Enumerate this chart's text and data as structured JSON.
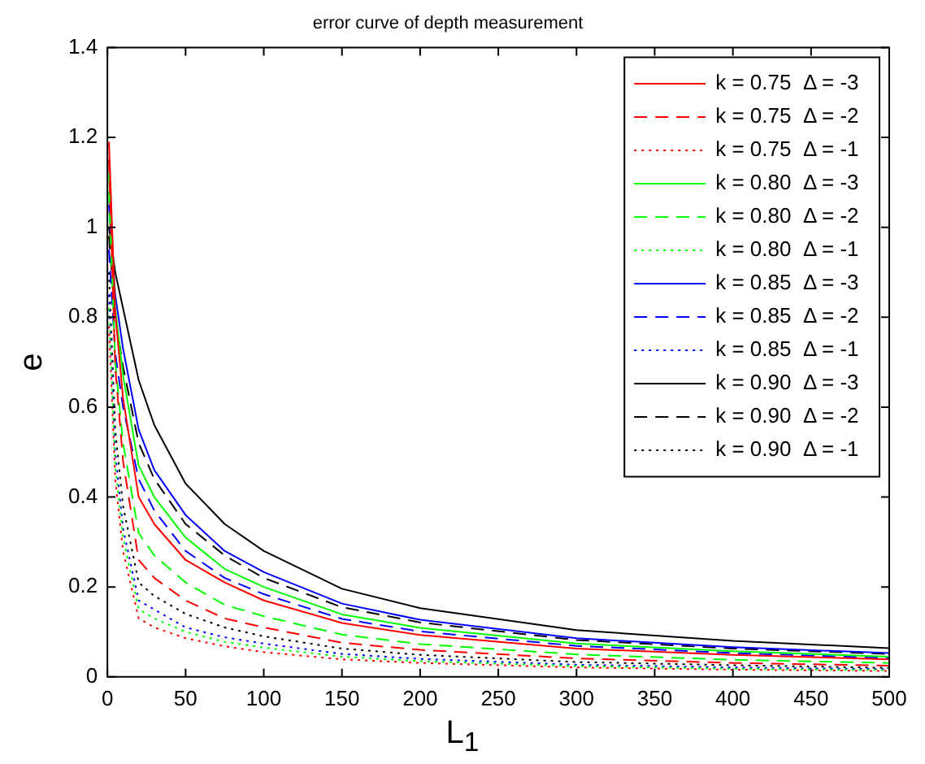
{
  "chart_data": {
    "type": "line",
    "title": "error curve of depth measurement",
    "xlabel": "L$_{1}$",
    "ylabel": "e",
    "x": [
      1,
      5,
      10,
      20,
      30,
      50,
      75,
      100,
      150,
      200,
      300,
      400,
      500
    ],
    "xlim": [
      0,
      500
    ],
    "xticks": [
      0,
      50,
      100,
      150,
      200,
      250,
      300,
      350,
      400,
      450,
      500
    ],
    "ylim": [
      0,
      1.4
    ],
    "yticks": [
      0,
      0.2,
      0.4,
      0.6,
      0.8,
      1,
      1.2,
      1.4
    ],
    "grid": false,
    "legend": "top right",
    "marker": "none",
    "series": [
      {
        "name": "k = 0.75  Δ = -3",
        "color": "#ff0000",
        "line_style": "solid",
        "values": [
          1.19,
          0.81,
          0.62,
          0.4,
          0.34,
          0.26,
          0.21,
          0.17,
          0.12,
          0.093,
          0.063,
          0.049,
          0.039
        ]
      },
      {
        "name": "k = 0.75  Δ = -2",
        "color": "#ff0000",
        "line_style": "dashed",
        "values": [
          1.15,
          0.69,
          0.48,
          0.26,
          0.22,
          0.17,
          0.13,
          0.11,
          0.076,
          0.06,
          0.041,
          0.031,
          0.025
        ]
      },
      {
        "name": "k = 0.75  Δ = -1",
        "color": "#ff0000",
        "line_style": "dotted",
        "values": [
          0.78,
          0.44,
          0.28,
          0.13,
          0.11,
          0.086,
          0.068,
          0.055,
          0.039,
          0.031,
          0.021,
          0.016,
          0.013
        ]
      },
      {
        "name": "k = 0.80  Δ = -3",
        "color": "#00ff00",
        "line_style": "solid",
        "values": [
          1.12,
          0.82,
          0.67,
          0.47,
          0.4,
          0.31,
          0.24,
          0.2,
          0.139,
          0.109,
          0.074,
          0.057,
          0.045
        ]
      },
      {
        "name": "k = 0.80  Δ = -2",
        "color": "#00ff00",
        "line_style": "dashed",
        "values": [
          1.08,
          0.7,
          0.52,
          0.32,
          0.27,
          0.21,
          0.16,
          0.135,
          0.094,
          0.073,
          0.05,
          0.038,
          0.031
        ]
      },
      {
        "name": "k = 0.80  Δ = -1",
        "color": "#00ff00",
        "line_style": "dotted",
        "values": [
          0.82,
          0.47,
          0.31,
          0.15,
          0.13,
          0.1,
          0.078,
          0.065,
          0.045,
          0.035,
          0.024,
          0.018,
          0.015
        ]
      },
      {
        "name": "k = 0.85  Δ = -3",
        "color": "#0000ff",
        "line_style": "solid",
        "values": [
          1.05,
          0.85,
          0.73,
          0.55,
          0.46,
          0.36,
          0.28,
          0.233,
          0.163,
          0.127,
          0.086,
          0.066,
          0.053
        ]
      },
      {
        "name": "k = 0.85  Δ = -2",
        "color": "#0000ff",
        "line_style": "dashed",
        "values": [
          0.95,
          0.72,
          0.6,
          0.44,
          0.37,
          0.28,
          0.22,
          0.184,
          0.129,
          0.101,
          0.069,
          0.053,
          0.042
        ]
      },
      {
        "name": "k = 0.85  Δ = -1",
        "color": "#0000ff",
        "line_style": "dotted",
        "values": [
          0.85,
          0.5,
          0.33,
          0.17,
          0.15,
          0.11,
          0.088,
          0.074,
          0.051,
          0.04,
          0.027,
          0.021,
          0.017
        ]
      },
      {
        "name": "k = 0.90  Δ = -3",
        "color": "#000000",
        "line_style": "solid",
        "values": [
          1.0,
          0.9,
          0.82,
          0.66,
          0.56,
          0.43,
          0.34,
          0.28,
          0.196,
          0.153,
          0.104,
          0.08,
          0.064
        ]
      },
      {
        "name": "k = 0.90  Δ = -2",
        "color": "#000000",
        "line_style": "dashed",
        "values": [
          0.98,
          0.8,
          0.69,
          0.52,
          0.44,
          0.34,
          0.27,
          0.22,
          0.155,
          0.121,
          0.082,
          0.063,
          0.051
        ]
      },
      {
        "name": "k = 0.90  Δ = -1",
        "color": "#000000",
        "line_style": "dotted",
        "values": [
          0.9,
          0.55,
          0.38,
          0.21,
          0.18,
          0.14,
          0.11,
          0.09,
          0.063,
          0.049,
          0.033,
          0.026,
          0.02
        ]
      }
    ]
  }
}
